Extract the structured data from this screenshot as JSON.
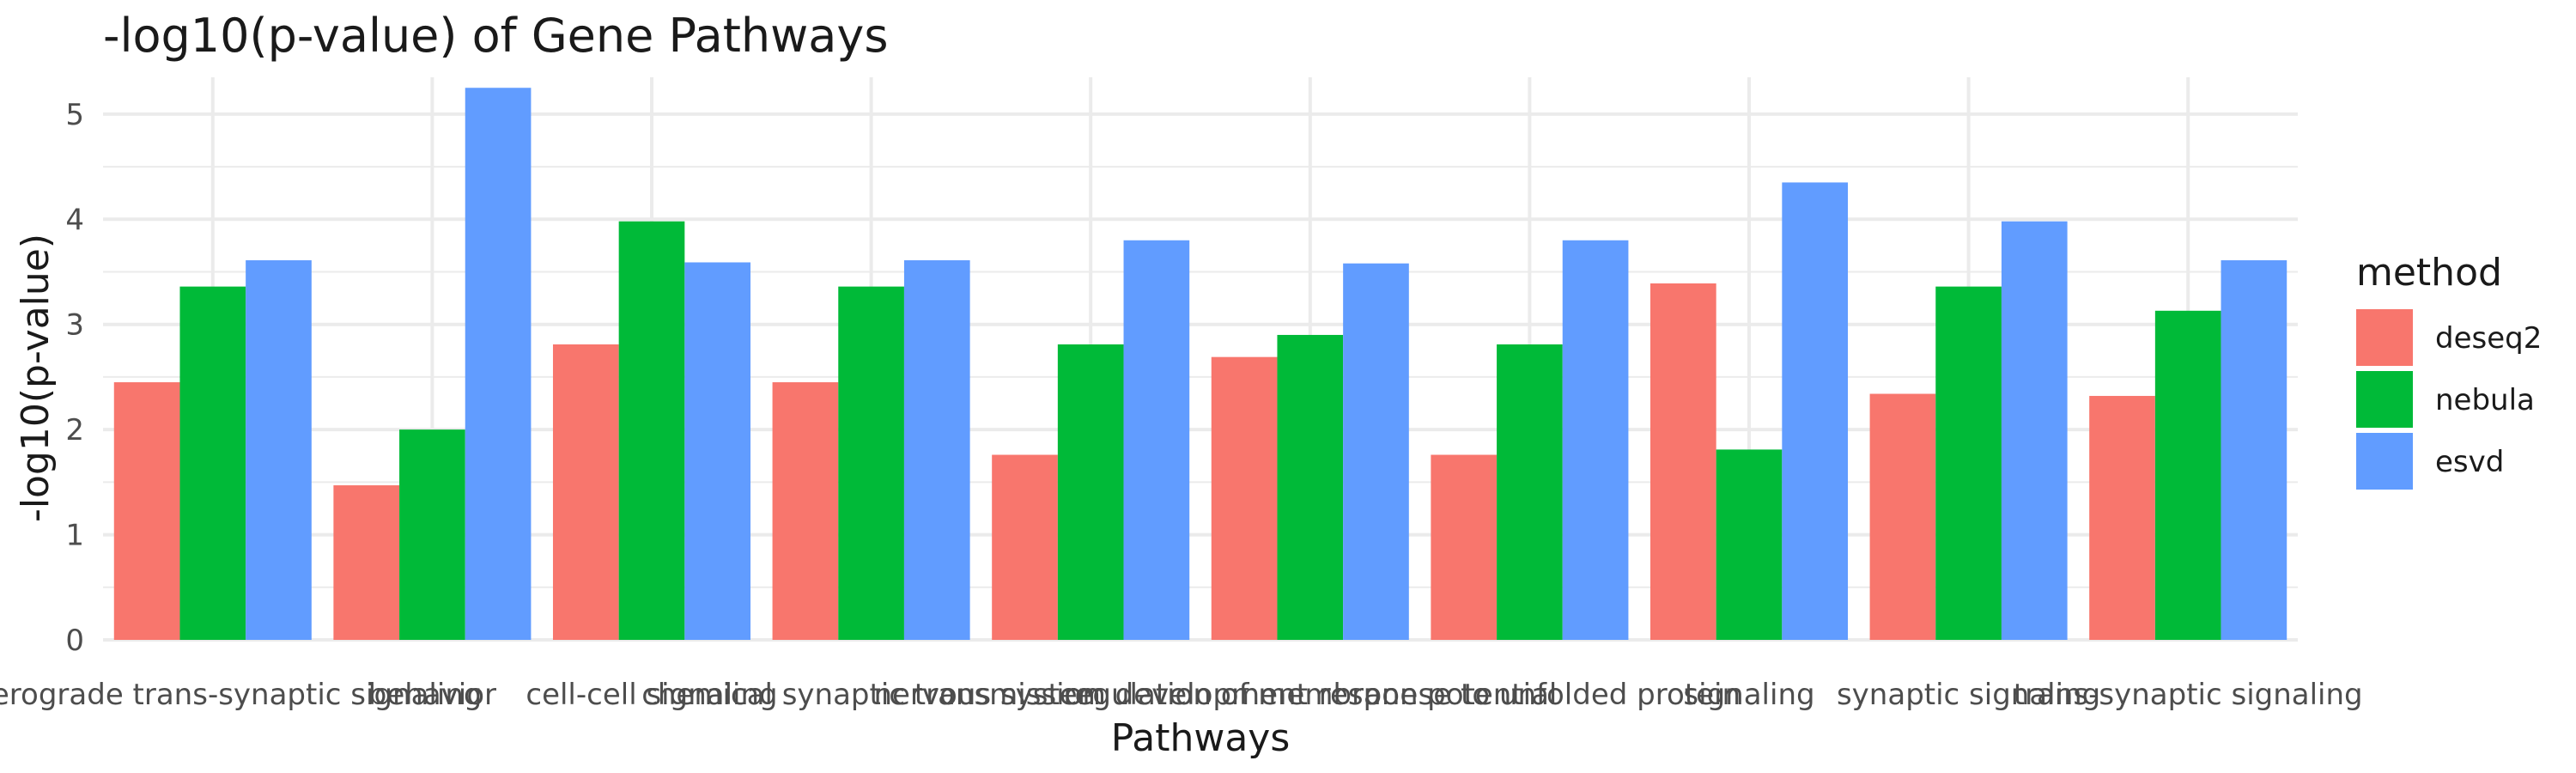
{
  "chart_data": {
    "type": "bar",
    "title": "-log10(p-value) of Gene Pathways",
    "xlabel": "Pathways",
    "ylabel": "-log10(p-value)",
    "ylim": [
      0,
      5.35
    ],
    "yticks": [
      0,
      1,
      2,
      3,
      4,
      5
    ],
    "grid": true,
    "legend": {
      "title": "method",
      "position": "right"
    },
    "categories": [
      "anterograde trans-synaptic signaling",
      "behavior",
      "cell-cell signaling",
      "chemical synaptic transmission",
      "nervous system development",
      "regulation of membrane potential",
      "response to unfolded protein",
      "signaling",
      "synaptic signaling",
      "trans-synaptic signaling"
    ],
    "series": [
      {
        "name": "deseq2",
        "color": "#F8766D",
        "values": [
          2.45,
          1.47,
          2.81,
          2.45,
          1.76,
          2.69,
          1.76,
          3.39,
          2.34,
          2.32
        ]
      },
      {
        "name": "nebula",
        "color": "#00BA38",
        "values": [
          3.36,
          2.0,
          3.98,
          3.36,
          2.81,
          2.9,
          2.81,
          1.81,
          3.36,
          3.13
        ]
      },
      {
        "name": "esvd",
        "color": "#619CFF",
        "values": [
          3.61,
          5.25,
          3.59,
          3.61,
          3.8,
          3.58,
          3.8,
          4.35,
          3.98,
          3.61
        ]
      }
    ]
  }
}
